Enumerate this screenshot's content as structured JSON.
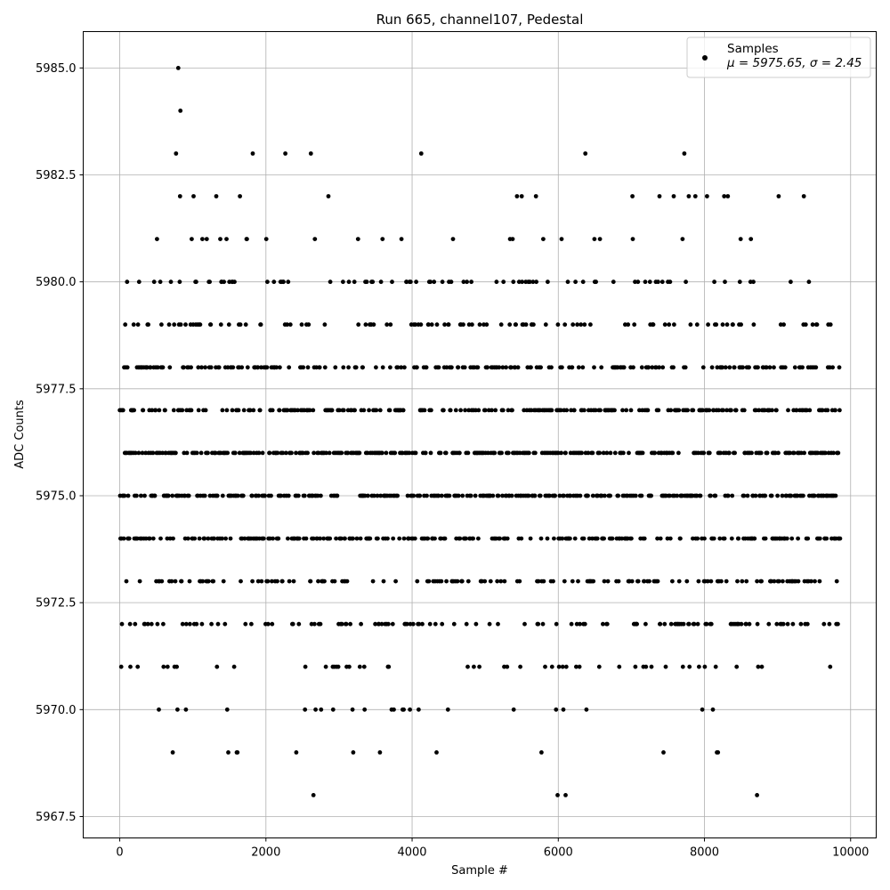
{
  "chart_data": {
    "type": "scatter",
    "title": "Run 665, channel107, Pedestal",
    "xlabel": "Sample #",
    "ylabel": "ADC Counts",
    "xlim": [
      -500,
      10350
    ],
    "ylim": [
      5967.0,
      5985.85
    ],
    "xticks": [
      0,
      2000,
      4000,
      6000,
      8000,
      10000
    ],
    "xtick_labels": [
      "0",
      "2000",
      "4000",
      "6000",
      "8000",
      "10000"
    ],
    "yticks": [
      5967.5,
      5970.0,
      5972.5,
      5975.0,
      5977.5,
      5980.0,
      5982.5,
      5985.0
    ],
    "ytick_labels": [
      "5967.5",
      "5970.0",
      "5972.5",
      "5975.0",
      "5977.5",
      "5980.0",
      "5982.5",
      "5985.0"
    ],
    "grid": true,
    "legend_position": "top-right",
    "legend": {
      "label": "Samples",
      "stats_line": "μ = 5975.65, σ = 2.45"
    },
    "series": [
      {
        "name": "Samples",
        "color": "#000000",
        "marker": "circle",
        "n_samples": 9856,
        "mean": 5975.65,
        "std": 2.45,
        "x_range": [
          0,
          9856
        ],
        "values_present": [
          5968,
          5969,
          5970,
          5971,
          5972,
          5973,
          5974,
          5975,
          5976,
          5977,
          5978,
          5979,
          5980,
          5981,
          5982,
          5983,
          5984,
          5985
        ],
        "outliers": [
          {
            "x": 800,
            "y": 5985
          },
          {
            "x": 830,
            "y": 5984
          },
          {
            "x": 2650,
            "y": 5968
          },
          {
            "x": 5990,
            "y": 5968
          },
          {
            "x": 6100,
            "y": 5968
          },
          {
            "x": 8720,
            "y": 5968
          }
        ]
      }
    ]
  }
}
